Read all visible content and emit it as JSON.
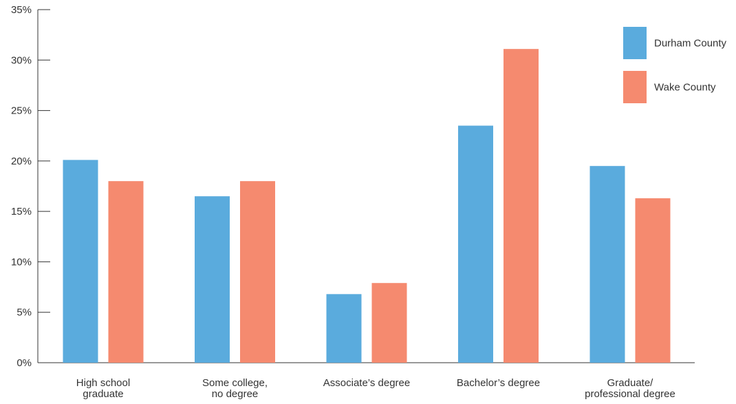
{
  "chart_data": {
    "type": "bar",
    "title": "",
    "xlabel": "",
    "ylabel": "",
    "categories": [
      [
        "High school",
        "graduate"
      ],
      [
        "Some college,",
        "no degree"
      ],
      [
        "Associate’s degree"
      ],
      [
        "Bachelor’s degree"
      ],
      [
        "Graduate/",
        "professional degree"
      ]
    ],
    "series": [
      {
        "name": "Durham County",
        "color": "#5aabdd",
        "values": [
          20.1,
          16.5,
          6.8,
          23.5,
          19.5
        ]
      },
      {
        "name": "Wake County",
        "color": "#f58a6f",
        "values": [
          18.0,
          18.0,
          7.9,
          31.1,
          16.3
        ]
      }
    ],
    "ylim": [
      0,
      35
    ],
    "yticks": [
      0,
      5,
      10,
      15,
      20,
      25,
      30,
      35
    ],
    "ytick_labels": [
      "0%",
      "5%",
      "10%",
      "15%",
      "20%",
      "25%",
      "30%",
      "35%"
    ],
    "grid": false,
    "legend_position": "top-right"
  }
}
